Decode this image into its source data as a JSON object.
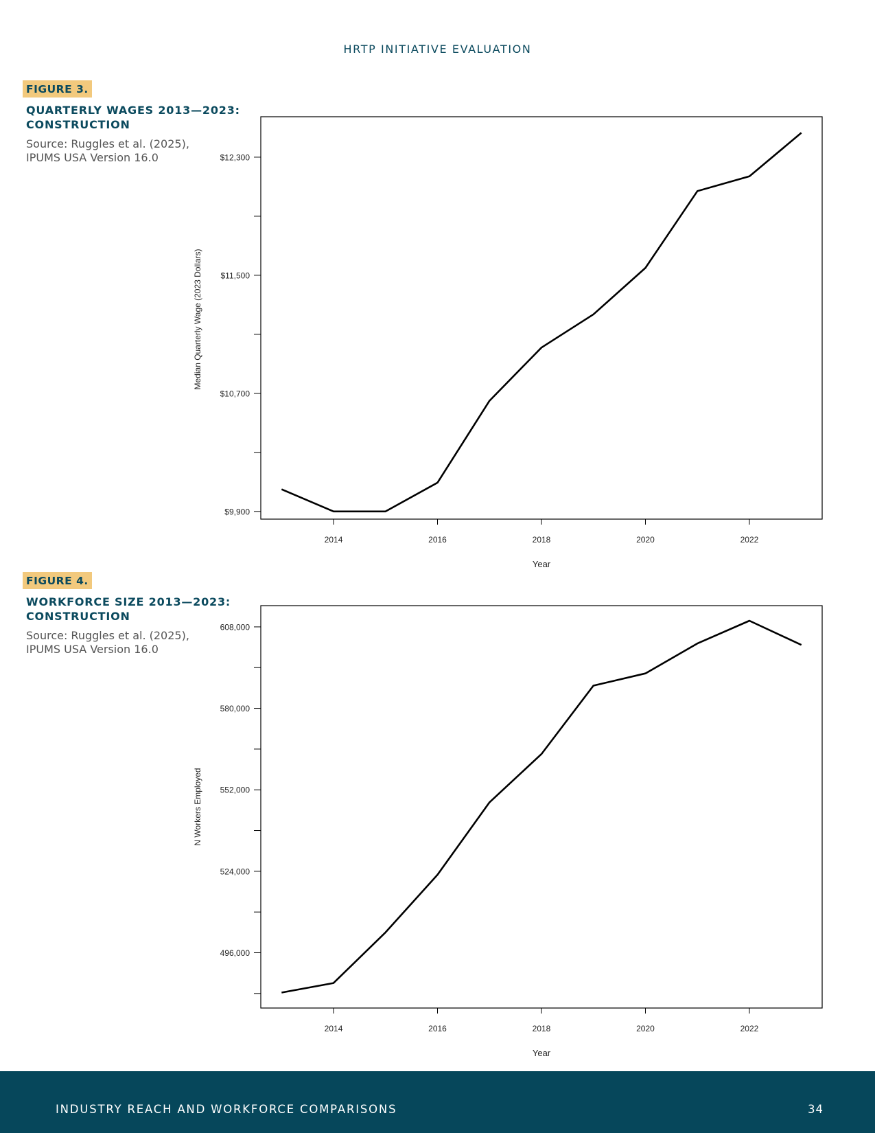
{
  "header": {
    "running_title": "HRTP INITIATIVE EVALUATION"
  },
  "figures": [
    {
      "label": "FIGURE 3.",
      "title_line1": "QUARTERLY WAGES 2013—2023:",
      "title_line2": "CONSTRUCTION",
      "source_line1": "Source: Ruggles et al. (2025),",
      "source_line2": "IPUMS USA Version 16.0"
    },
    {
      "label": "FIGURE 4.",
      "title_line1": "WORKFORCE SIZE 2013—2023:",
      "title_line2": "CONSTRUCTION",
      "source_line1": "Source: Ruggles et al. (2025),",
      "source_line2": "IPUMS USA Version 16.0"
    }
  ],
  "chart_data": [
    {
      "type": "line",
      "title": "",
      "xlabel": "Year",
      "ylabel": "Median Quarterly Wage (2023 Dollars)",
      "x": [
        2013,
        2014,
        2015,
        2016,
        2017,
        2018,
        2019,
        2020,
        2021,
        2022,
        2023
      ],
      "series": [
        {
          "values": [
            10050,
            9900,
            9900,
            10095,
            10650,
            11010,
            11235,
            11550,
            12070,
            12170,
            12465
          ]
        }
      ],
      "xticks": [
        2014,
        2016,
        2018,
        2020,
        2022
      ],
      "xtick_labels": [
        "2014",
        "2016",
        "2018",
        "2020",
        "2022"
      ],
      "yticks_labeled": [
        9900,
        10700,
        11500,
        12300
      ],
      "ytick_labels": [
        "$9,900",
        "$10,700",
        "$11,500",
        "$12,300"
      ],
      "yticks_minor": [
        10300,
        11100,
        11900
      ],
      "xlim": [
        2012.6,
        2023.4
      ],
      "ylim": [
        9848,
        12574
      ],
      "grid": false,
      "line_color": "#000000"
    },
    {
      "type": "line",
      "title": "",
      "xlabel": "Year",
      "ylabel": "N Workers Employed",
      "x": [
        2013,
        2014,
        2015,
        2016,
        2017,
        2018,
        2019,
        2020,
        2021,
        2022,
        2023
      ],
      "series": [
        {
          "values": [
            482300,
            485600,
            503000,
            522800,
            547700,
            564300,
            587800,
            592000,
            602300,
            610100,
            601800
          ]
        }
      ],
      "xticks": [
        2014,
        2016,
        2018,
        2020,
        2022
      ],
      "xtick_labels": [
        "2014",
        "2016",
        "2018",
        "2020",
        "2022"
      ],
      "yticks_labeled": [
        496000,
        524000,
        552000,
        580000,
        608000
      ],
      "ytick_labels": [
        "496,000",
        "524,000",
        "552,000",
        "580,000",
        "608,000"
      ],
      "yticks_minor": [
        482000,
        510000,
        538000,
        566000,
        594000
      ],
      "xlim": [
        2012.6,
        2023.4
      ],
      "ylim": [
        477000,
        615300
      ],
      "grid": false,
      "line_color": "#000000"
    }
  ],
  "footer": {
    "section_title": "INDUSTRY REACH AND WORKFORCE COMPARISONS",
    "page_number": "34"
  }
}
